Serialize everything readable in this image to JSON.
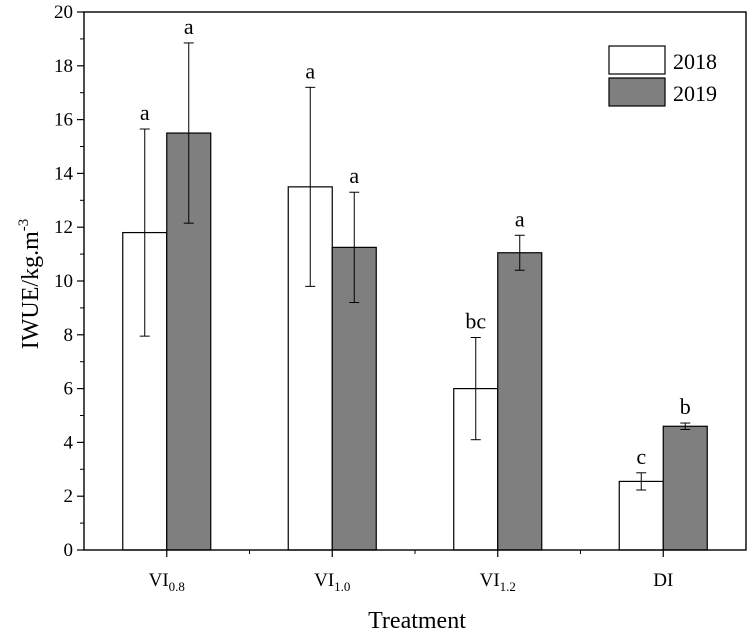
{
  "chart_data": {
    "type": "bar",
    "categories": [
      {
        "main": "VI",
        "sub": "0.8"
      },
      {
        "main": "VI",
        "sub": "1.0"
      },
      {
        "main": "VI",
        "sub": "1.2"
      },
      {
        "main": "DI",
        "sub": ""
      }
    ],
    "series": [
      {
        "name": "2018",
        "color": "#ffffff",
        "values": [
          11.8,
          13.5,
          6.0,
          2.55
        ],
        "errors": [
          3.85,
          3.7,
          1.9,
          0.32
        ],
        "letters": [
          "a",
          "a",
          "bc",
          "c"
        ]
      },
      {
        "name": "2019",
        "color": "#7f7f7f",
        "values": [
          15.5,
          11.25,
          11.05,
          4.6
        ],
        "errors": [
          3.35,
          2.05,
          0.65,
          0.12
        ],
        "letters": [
          "a",
          "a",
          "a",
          "b"
        ]
      }
    ],
    "xlabel": "Treatment",
    "ylabel": {
      "main": "IWUE/kg.m",
      "sup": "-3"
    },
    "ylim": [
      0,
      20
    ],
    "yticks": [
      "0",
      "2",
      "4",
      "6",
      "8",
      "10",
      "12",
      "14",
      "16",
      "18",
      "20"
    ],
    "grid": false,
    "legend_position": "top-right"
  }
}
